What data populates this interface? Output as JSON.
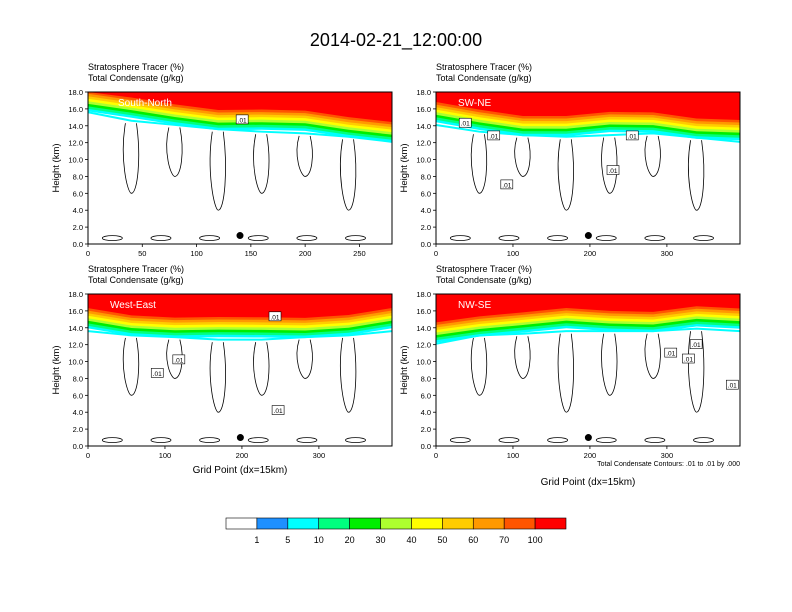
{
  "title": "2014-02-21_12:00:00",
  "chart_data": [
    {
      "type": "heatmap",
      "label": "South-North",
      "subtitle_left": "Stratosphere Tracer",
      "subtitle_left_units": "(%)",
      "subtitle_left2": "Total Condensate",
      "subtitle_left2_units": "(g/kg)",
      "ylabel": "Height (km)",
      "xlabel": "",
      "xlim": [
        0,
        280
      ],
      "ylim": [
        0,
        18
      ],
      "xticks": [
        "0",
        "50",
        "100",
        "150",
        "200",
        "250"
      ],
      "xtick_values": [
        0,
        50,
        100,
        150,
        200,
        250
      ],
      "yticks": [
        "0.0",
        "2.0",
        "4.0",
        "6.0",
        "8.0",
        "10.0",
        "12.0",
        "14.0",
        "16.0",
        "18.0"
      ],
      "contour_labels": [
        {
          "text": ".01",
          "x": 142,
          "y": 14.7
        }
      ],
      "marker": {
        "x": 140,
        "y": 1.0
      },
      "tracer_top_km": [
        17.5,
        16.5,
        16.0,
        15.5,
        15.2,
        15.0,
        14.6,
        14.0
      ],
      "annotation": ""
    },
    {
      "type": "heatmap",
      "label": "SW-NE",
      "subtitle_left": "Stratosphere Tracer",
      "subtitle_left_units": "(%)",
      "subtitle_left2": "Total Condensate",
      "subtitle_left2_units": "(g/kg)",
      "ylabel": "Height (km)",
      "xlabel": "",
      "xlim": [
        0,
        395
      ],
      "ylim": [
        0,
        18
      ],
      "xticks": [
        "0",
        "100",
        "200",
        "300"
      ],
      "xtick_values": [
        0,
        100,
        200,
        300
      ],
      "yticks": [
        "0.0",
        "2.0",
        "4.0",
        "6.0",
        "8.0",
        "10.0",
        "12.0",
        "14.0",
        "16.0",
        "18.0"
      ],
      "contour_labels": [
        {
          "text": ".01",
          "x": 38,
          "y": 14.3
        },
        {
          "text": ".01",
          "x": 75,
          "y": 12.8
        },
        {
          "text": ".01",
          "x": 92,
          "y": 7.0
        },
        {
          "text": ".01",
          "x": 255,
          "y": 12.8
        },
        {
          "text": ".01",
          "x": 230,
          "y": 8.7
        }
      ],
      "marker": {
        "x": 198,
        "y": 1.0
      },
      "tracer_top_km": [
        16.0,
        15.2,
        14.8,
        14.6,
        14.8,
        15.0,
        14.5,
        14.0
      ],
      "annotation": ""
    },
    {
      "type": "heatmap",
      "label": "West-East",
      "subtitle_left": "Stratosphere Tracer",
      "subtitle_left_units": "(%)",
      "subtitle_left2": "Total Condensate",
      "subtitle_left2_units": "(g/kg)",
      "ylabel": "Height (km)",
      "xlabel": "Grid Point (dx=15km)",
      "xlim": [
        0,
        395
      ],
      "ylim": [
        0,
        18
      ],
      "xticks": [
        "0",
        "100",
        "200",
        "300"
      ],
      "xtick_values": [
        0,
        100,
        200,
        300
      ],
      "yticks": [
        "0.0",
        "2.0",
        "4.0",
        "6.0",
        "8.0",
        "10.0",
        "12.0",
        "14.0",
        "16.0",
        "18.0"
      ],
      "contour_labels": [
        {
          "text": ".01",
          "x": 243,
          "y": 15.3
        },
        {
          "text": ".01",
          "x": 118,
          "y": 10.2
        },
        {
          "text": ".01",
          "x": 90,
          "y": 8.6
        },
        {
          "text": ".01",
          "x": 247,
          "y": 4.2
        }
      ],
      "marker": {
        "x": 198,
        "y": 1.0
      },
      "tracer_top_km": [
        15.5,
        15.0,
        14.8,
        14.5,
        14.5,
        14.8,
        15.0,
        15.5
      ],
      "annotation": ""
    },
    {
      "type": "heatmap",
      "label": "NW-SE",
      "subtitle_left": "Stratosphere Tracer",
      "subtitle_left_units": "(%)",
      "subtitle_left2": "Total Condensate",
      "subtitle_left2_units": "(g/kg)",
      "ylabel": "Height (km)",
      "xlabel": "Grid Point (dx=15km)",
      "xlim": [
        0,
        395
      ],
      "ylim": [
        0,
        18
      ],
      "xticks": [
        "0",
        "100",
        "200",
        "300"
      ],
      "xtick_values": [
        0,
        100,
        200,
        300
      ],
      "yticks": [
        "0.0",
        "2.0",
        "4.0",
        "6.0",
        "8.0",
        "10.0",
        "12.0",
        "14.0",
        "16.0",
        "18.0"
      ],
      "contour_labels": [
        {
          "text": ".01",
          "x": 305,
          "y": 11.0
        },
        {
          "text": ".01",
          "x": 338,
          "y": 12.0
        },
        {
          "text": ".01",
          "x": 328,
          "y": 10.3
        },
        {
          "text": ".01",
          "x": 385,
          "y": 7.2
        }
      ],
      "marker": {
        "x": 198,
        "y": 1.0
      },
      "tracer_top_km": [
        14.0,
        15.0,
        15.2,
        15.5,
        15.5,
        15.5,
        15.8,
        15.5
      ],
      "annotation": "Total Condensate Contours: .01 to .01 by .000"
    }
  ],
  "colorbar": {
    "labels": [
      "1",
      "5",
      "10",
      "20",
      "30",
      "40",
      "50",
      "60",
      "70",
      "100"
    ],
    "colors": [
      "#ffffff",
      "#1e90ff",
      "#00ffff",
      "#00ff7f",
      "#00ee00",
      "#adff2f",
      "#ffff00",
      "#ffcc00",
      "#ff9900",
      "#ff5500",
      "#ff0000"
    ]
  }
}
